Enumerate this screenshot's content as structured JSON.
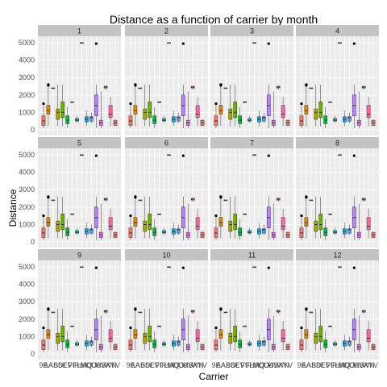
{
  "chart_data": {
    "type": "boxplot",
    "title": "Distance as a function of carrier by month",
    "xlabel": "Carrier",
    "ylabel": "Distance",
    "ylim": [
      0,
      5000
    ],
    "y_ticks": [
      0,
      1000,
      2000,
      3000,
      4000,
      5000
    ],
    "grid": true,
    "facets": [
      "1",
      "2",
      "3",
      "4",
      "5",
      "6",
      "7",
      "8",
      "9",
      "10",
      "11",
      "12"
    ],
    "carriers": [
      "9E",
      "AA",
      "AS",
      "B6",
      "DL",
      "EV",
      "F9",
      "FL",
      "HA",
      "MQ",
      "OO",
      "UA",
      "US",
      "VX",
      "WN",
      "YV"
    ],
    "x_tick_labels": [
      "9E",
      "AA",
      "AS",
      "B6",
      "DL",
      "EV",
      "F9",
      "FL",
      "HA",
      "MQ",
      "OO",
      "UA",
      "US",
      "VX",
      "WN",
      "YV"
    ],
    "colors": [
      "#F8766D",
      "#E58700",
      "#C99800",
      "#A3A500",
      "#6BB100",
      "#00BA38",
      "#00BF7D",
      "#00C0AF",
      "#00BCD8",
      "#00B0F6",
      "#619CFF",
      "#B983FF",
      "#E76BF3",
      "#FD61D1",
      "#FF67A4",
      "#F8766D"
    ],
    "boxes": [
      {
        "carrier": "9E",
        "q1": 250,
        "median": 510,
        "q3": 800,
        "lo": 100,
        "hi": 1400,
        "outliers": [
          1500
        ]
      },
      {
        "carrier": "AA",
        "q1": 900,
        "median": 1100,
        "q3": 1400,
        "lo": 200,
        "hi": 2500,
        "outliers": [
          2550,
          2600
        ]
      },
      {
        "carrier": "AS",
        "q1": 2400,
        "median": 2400,
        "q3": 2400,
        "lo": 2400,
        "hi": 2400,
        "outliers": []
      },
      {
        "carrier": "B6",
        "q1": 600,
        "median": 1000,
        "q3": 1200,
        "lo": 200,
        "hi": 2600,
        "outliers": []
      },
      {
        "carrier": "DL",
        "q1": 700,
        "median": 1000,
        "q3": 1600,
        "lo": 200,
        "hi": 2600,
        "outliers": []
      },
      {
        "carrier": "EV",
        "q1": 350,
        "median": 550,
        "q3": 800,
        "lo": 100,
        "hi": 1300,
        "outliers": []
      },
      {
        "carrier": "F9",
        "q1": 1600,
        "median": 1600,
        "q3": 1600,
        "lo": 1600,
        "hi": 1600,
        "outliers": []
      },
      {
        "carrier": "FL",
        "q1": 500,
        "median": 550,
        "q3": 650,
        "lo": 400,
        "hi": 800,
        "outliers": []
      },
      {
        "carrier": "HA",
        "q1": 5000,
        "median": 5000,
        "q3": 5000,
        "lo": 5000,
        "hi": 5000,
        "outliers": []
      },
      {
        "carrier": "MQ",
        "q1": 450,
        "median": 600,
        "q3": 750,
        "lo": 200,
        "hi": 1100,
        "outliers": []
      },
      {
        "carrier": "OO",
        "q1": 500,
        "median": 700,
        "q3": 750,
        "lo": 400,
        "hi": 1000,
        "outliers": []
      },
      {
        "carrier": "UA",
        "q1": 800,
        "median": 1400,
        "q3": 2000,
        "lo": 100,
        "hi": 2600,
        "outliers": [
          4950
        ]
      },
      {
        "carrier": "US",
        "q1": 250,
        "median": 400,
        "q3": 550,
        "lo": 100,
        "hi": 2200,
        "outliers": []
      },
      {
        "carrier": "VX",
        "q1": 2400,
        "median": 2450,
        "q3": 2500,
        "lo": 2300,
        "hi": 2550,
        "outliers": []
      },
      {
        "carrier": "WN",
        "q1": 700,
        "median": 900,
        "q3": 1400,
        "lo": 200,
        "hi": 1900,
        "outliers": []
      },
      {
        "carrier": "YV",
        "q1": 250,
        "median": 400,
        "q3": 550,
        "lo": 200,
        "hi": 600,
        "outliers": []
      }
    ]
  }
}
